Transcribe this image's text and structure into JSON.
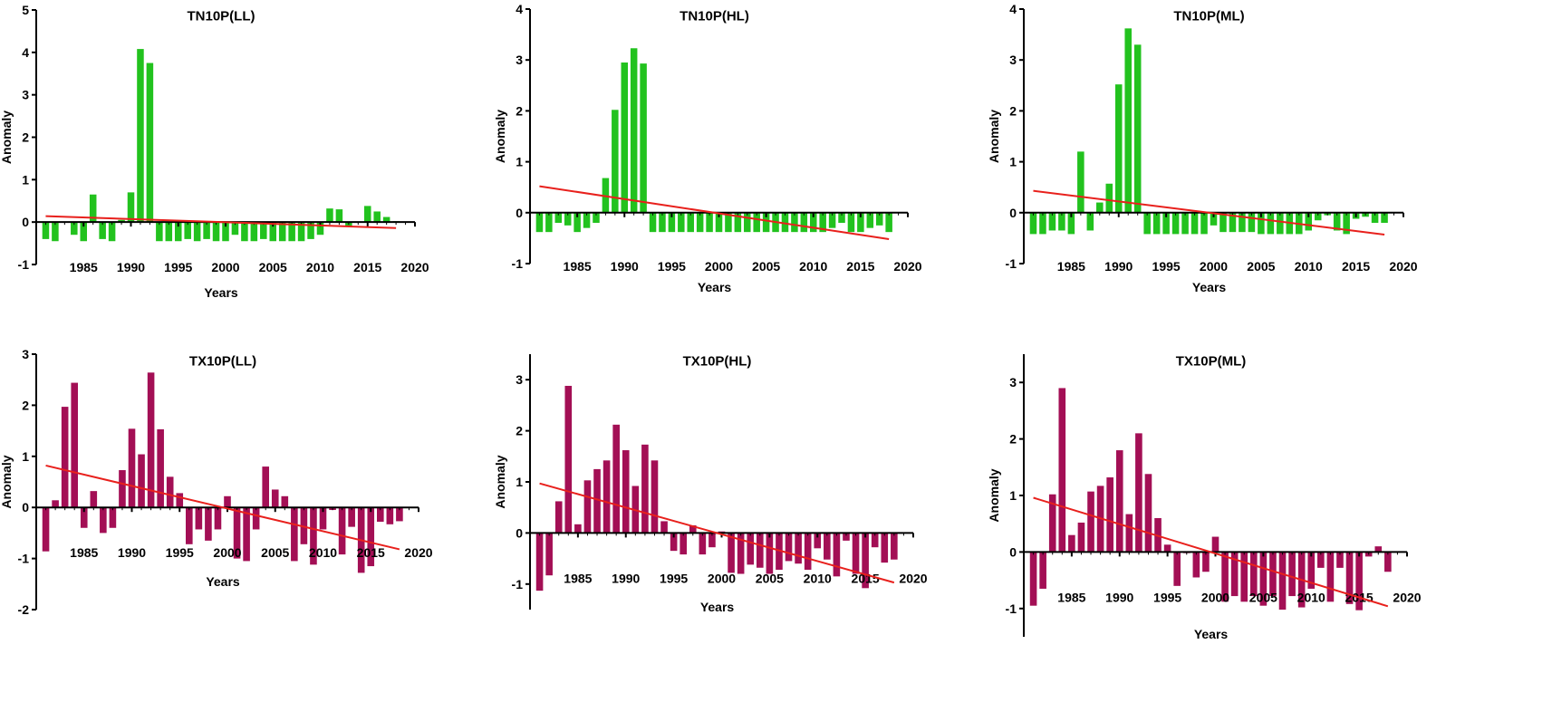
{
  "chart_data": [
    {
      "type": "bar",
      "title": "TN10P(LL)",
      "xlabel": "Years",
      "ylabel": "Anomaly",
      "ylim": [
        -1,
        5
      ],
      "yticks": [
        -1,
        0,
        1,
        2,
        3,
        4,
        5
      ],
      "xlim": [
        1980,
        2020
      ],
      "xticks": [
        1985,
        1990,
        1995,
        2000,
        2005,
        2010,
        2015,
        2020
      ],
      "bar_color": "#22c21e",
      "trend_color": "#e8201c",
      "x": [
        1981,
        1982,
        1983,
        1984,
        1985,
        1986,
        1987,
        1988,
        1989,
        1990,
        1991,
        1992,
        1993,
        1994,
        1995,
        1996,
        1997,
        1998,
        1999,
        2000,
        2001,
        2002,
        2003,
        2004,
        2005,
        2006,
        2007,
        2008,
        2009,
        2010,
        2011,
        2012,
        2013,
        2014,
        2015,
        2016,
        2017,
        2018
      ],
      "values": [
        -0.4,
        -0.45,
        0,
        -0.3,
        -0.45,
        0.65,
        -0.4,
        -0.45,
        0.05,
        0.7,
        4.08,
        3.75,
        -0.45,
        -0.45,
        -0.45,
        -0.4,
        -0.45,
        -0.4,
        -0.45,
        -0.45,
        -0.3,
        -0.45,
        -0.45,
        -0.4,
        -0.45,
        -0.45,
        -0.45,
        -0.45,
        -0.4,
        -0.3,
        0.32,
        0.3,
        -0.1,
        0,
        0.38,
        0.25,
        0.12,
        0.02
      ],
      "trend": {
        "x": [
          1981,
          2018
        ],
        "y": [
          0.14,
          -0.14
        ]
      }
    },
    {
      "type": "bar",
      "title": "TN10P(HL)",
      "xlabel": "Years",
      "ylabel": "Anomaly",
      "ylim": [
        -1,
        4
      ],
      "yticks": [
        -1,
        0,
        1,
        2,
        3,
        4
      ],
      "xlim": [
        1980,
        2020
      ],
      "xticks": [
        1985,
        1990,
        1995,
        2000,
        2005,
        2010,
        2015,
        2020
      ],
      "bar_color": "#22c21e",
      "trend_color": "#e8201c",
      "x": [
        1981,
        1982,
        1983,
        1984,
        1985,
        1986,
        1987,
        1988,
        1989,
        1990,
        1991,
        1992,
        1993,
        1994,
        1995,
        1996,
        1997,
        1998,
        1999,
        2000,
        2001,
        2002,
        2003,
        2004,
        2005,
        2006,
        2007,
        2008,
        2009,
        2010,
        2011,
        2012,
        2013,
        2014,
        2015,
        2016,
        2017,
        2018
      ],
      "values": [
        -0.38,
        -0.38,
        -0.2,
        -0.25,
        -0.38,
        -0.3,
        -0.2,
        0.68,
        2.02,
        2.95,
        3.23,
        2.93,
        -0.38,
        -0.38,
        -0.38,
        -0.38,
        -0.38,
        -0.38,
        -0.38,
        -0.38,
        -0.38,
        -0.38,
        -0.38,
        -0.38,
        -0.38,
        -0.38,
        -0.38,
        -0.38,
        -0.38,
        -0.38,
        -0.38,
        -0.3,
        -0.2,
        -0.38,
        -0.38,
        -0.3,
        -0.25,
        -0.38
      ],
      "trend": {
        "x": [
          1981,
          2018
        ],
        "y": [
          0.52,
          -0.52
        ]
      }
    },
    {
      "type": "bar",
      "title": "TN10P(ML)",
      "xlabel": "Years",
      "ylabel": "Anomaly",
      "ylim": [
        -1,
        4
      ],
      "yticks": [
        -1,
        0,
        1,
        2,
        3,
        4
      ],
      "xlim": [
        1980,
        2020
      ],
      "xticks": [
        1985,
        1990,
        1995,
        2000,
        2005,
        2010,
        2015,
        2020
      ],
      "bar_color": "#22c21e",
      "trend_color": "#e8201c",
      "x": [
        1981,
        1982,
        1983,
        1984,
        1985,
        1986,
        1987,
        1988,
        1989,
        1990,
        1991,
        1992,
        1993,
        1994,
        1995,
        1996,
        1997,
        1998,
        1999,
        2000,
        2001,
        2002,
        2003,
        2004,
        2005,
        2006,
        2007,
        2008,
        2009,
        2010,
        2011,
        2012,
        2013,
        2014,
        2015,
        2016,
        2017,
        2018
      ],
      "values": [
        -0.42,
        -0.42,
        -0.35,
        -0.35,
        -0.42,
        1.2,
        -0.35,
        0.2,
        0.57,
        2.52,
        3.62,
        3.3,
        -0.42,
        -0.42,
        -0.42,
        -0.42,
        -0.42,
        -0.42,
        -0.42,
        -0.25,
        -0.38,
        -0.38,
        -0.38,
        -0.38,
        -0.42,
        -0.42,
        -0.42,
        -0.42,
        -0.42,
        -0.35,
        -0.15,
        -0.05,
        -0.35,
        -0.42,
        -0.12,
        -0.08,
        -0.2,
        -0.2
      ],
      "trend": {
        "x": [
          1981,
          2018
        ],
        "y": [
          0.43,
          -0.43
        ]
      }
    },
    {
      "type": "bar",
      "title": "TX10P(LL)",
      "xlabel": "Years",
      "ylabel": "Anomaly",
      "ylim": [
        -2,
        3
      ],
      "yticks": [
        -2,
        -1,
        0,
        1,
        2,
        3
      ],
      "xlim": [
        1980,
        2020
      ],
      "xticks": [
        1985,
        1990,
        1995,
        2000,
        2005,
        2010,
        2015,
        2020
      ],
      "bar_color": "#a30f55",
      "trend_color": "#e8201c",
      "x": [
        1981,
        1982,
        1983,
        1984,
        1985,
        1986,
        1987,
        1988,
        1989,
        1990,
        1991,
        1992,
        1993,
        1994,
        1995,
        1996,
        1997,
        1998,
        1999,
        2000,
        2001,
        2002,
        2003,
        2004,
        2005,
        2006,
        2007,
        2008,
        2009,
        2010,
        2011,
        2012,
        2013,
        2014,
        2015,
        2016,
        2017,
        2018
      ],
      "values": [
        -0.86,
        0.14,
        1.97,
        2.44,
        -0.4,
        0.32,
        -0.5,
        -0.4,
        0.73,
        1.54,
        1.04,
        2.64,
        1.53,
        0.6,
        0.28,
        -0.72,
        -0.43,
        -0.65,
        -0.43,
        0.22,
        -1.0,
        -1.05,
        -0.43,
        0.8,
        0.35,
        0.22,
        -1.05,
        -0.72,
        -1.12,
        -0.43,
        -0.05,
        -0.92,
        -0.38,
        -1.28,
        -1.15,
        -0.28,
        -0.33,
        -0.27
      ],
      "trend": {
        "x": [
          1981,
          2018
        ],
        "y": [
          0.82,
          -0.82
        ]
      }
    },
    {
      "type": "bar",
      "title": "TX10P(HL)",
      "xlabel": "Years",
      "ylabel": "Anomaly",
      "ylim": [
        -1.5,
        3.5
      ],
      "yticks": [
        -1,
        0,
        1,
        2,
        3
      ],
      "xlim": [
        1980,
        2020
      ],
      "xticks": [
        1985,
        1990,
        1995,
        2000,
        2005,
        2010,
        2015,
        2020
      ],
      "bar_color": "#a30f55",
      "trend_color": "#e8201c",
      "x": [
        1981,
        1982,
        1983,
        1984,
        1985,
        1986,
        1987,
        1988,
        1989,
        1990,
        1991,
        1992,
        1993,
        1994,
        1995,
        1996,
        1997,
        1998,
        1999,
        2000,
        2001,
        2002,
        2003,
        2004,
        2005,
        2006,
        2007,
        2008,
        2009,
        2010,
        2011,
        2012,
        2013,
        2014,
        2015,
        2016,
        2017,
        2018
      ],
      "values": [
        -1.13,
        -0.83,
        0.62,
        2.88,
        0.17,
        1.03,
        1.25,
        1.42,
        2.12,
        1.62,
        0.92,
        1.73,
        1.42,
        0.23,
        -0.35,
        -0.42,
        0.15,
        -0.42,
        -0.28,
        0.03,
        -0.78,
        -0.8,
        -0.62,
        -0.68,
        -0.8,
        -0.72,
        -0.55,
        -0.6,
        -0.72,
        -0.3,
        -0.52,
        -0.85,
        -0.15,
        -0.8,
        -1.08,
        -0.28,
        -0.58,
        -0.52
      ],
      "trend": {
        "x": [
          1981,
          2018
        ],
        "y": [
          0.97,
          -0.97
        ]
      }
    },
    {
      "type": "bar",
      "title": "TX10P(ML)",
      "xlabel": "Years",
      "ylabel": "Anomaly",
      "ylim": [
        -1.5,
        3.5
      ],
      "yticks": [
        -1,
        0,
        1,
        2,
        3
      ],
      "xlim": [
        1980,
        2020
      ],
      "xticks": [
        1985,
        1990,
        1995,
        2000,
        2005,
        2010,
        2015,
        2020
      ],
      "bar_color": "#a30f55",
      "trend_color": "#e8201c",
      "x": [
        1981,
        1982,
        1983,
        1984,
        1985,
        1986,
        1987,
        1988,
        1989,
        1990,
        1991,
        1992,
        1993,
        1994,
        1995,
        1996,
        1997,
        1998,
        1999,
        2000,
        2001,
        2002,
        2003,
        2004,
        2005,
        2006,
        2007,
        2008,
        2009,
        2010,
        2011,
        2012,
        2013,
        2014,
        2015,
        2016,
        2017,
        2018
      ],
      "values": [
        -0.95,
        -0.65,
        1.02,
        2.9,
        0.3,
        0.52,
        1.07,
        1.17,
        1.32,
        1.8,
        0.67,
        2.1,
        1.38,
        0.6,
        0.13,
        -0.6,
        -0.02,
        -0.45,
        -0.35,
        0.27,
        -0.88,
        -0.78,
        -0.88,
        -0.78,
        -0.95,
        -0.78,
        -1.02,
        -0.78,
        -0.98,
        -0.65,
        -0.28,
        -0.88,
        -0.28,
        -0.92,
        -1.03,
        -0.08,
        0.1,
        -0.35
      ],
      "trend": {
        "x": [
          1981,
          2018
        ],
        "y": [
          0.96,
          -0.96
        ]
      }
    }
  ]
}
